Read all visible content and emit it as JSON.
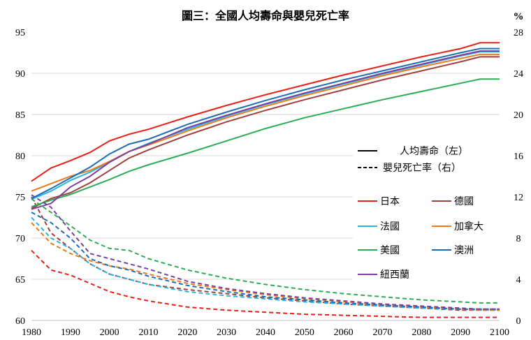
{
  "chart_data": {
    "type": "line",
    "title": "圖三：全國人均壽命與嬰兒死亡率",
    "right_unit": "%",
    "xlim": [
      1980,
      2100
    ],
    "ylim_left": [
      60,
      95
    ],
    "ylim_right": [
      0,
      28
    ],
    "x_ticks": [
      "1980",
      "1990",
      "2000",
      "2010",
      "2020",
      "2030",
      "2040",
      "2050",
      "2060",
      "2070",
      "2080",
      "2090",
      "2100"
    ],
    "y_left_ticks": [
      "60",
      "65",
      "70",
      "75",
      "80",
      "85",
      "90",
      "95"
    ],
    "y_right_ticks": [
      "0",
      "4",
      "8",
      "12",
      "16",
      "20",
      "24",
      "28"
    ],
    "grid": "horizontal",
    "legend_position": "right",
    "style_legend": [
      {
        "label": "人均壽命（左）",
        "dash": "solid"
      },
      {
        "label": "嬰兒死亡率（右）",
        "dash": "dashed"
      }
    ],
    "series": [
      {
        "name": "日本",
        "color": "#e8201a",
        "x": [
          1980,
          1985,
          1990,
          1995,
          2000,
          2005,
          2010,
          2020,
          2030,
          2040,
          2050,
          2060,
          2070,
          2080,
          2090,
          2095,
          2100
        ],
        "life": [
          76.9,
          78.5,
          79.4,
          80.4,
          81.8,
          82.6,
          83.2,
          84.7,
          86.1,
          87.4,
          88.6,
          89.8,
          90.9,
          92.0,
          93.0,
          93.7,
          93.7
        ],
        "infant": [
          6.8,
          4.9,
          4.4,
          3.6,
          2.8,
          2.3,
          1.9,
          1.3,
          1.0,
          0.8,
          0.6,
          0.5,
          0.4,
          0.3,
          0.3,
          0.3,
          0.3
        ]
      },
      {
        "name": "德國",
        "color": "#a0403c",
        "x": [
          1980,
          1985,
          1990,
          1995,
          2000,
          2005,
          2010,
          2020,
          2030,
          2040,
          2050,
          2060,
          2070,
          2080,
          2090,
          2095,
          2100
        ],
        "life": [
          73.6,
          74.8,
          75.5,
          76.7,
          78.2,
          79.7,
          80.7,
          82.5,
          84.1,
          85.5,
          86.8,
          88.0,
          89.2,
          90.3,
          91.4,
          92.0,
          92.0
        ],
        "infant": [
          12.0,
          8.5,
          7.0,
          5.5,
          4.5,
          4.0,
          3.5,
          3.0,
          2.6,
          2.2,
          1.9,
          1.6,
          1.4,
          1.2,
          1.0,
          1.0,
          1.0
        ]
      },
      {
        "name": "法國",
        "color": "#27b4e6",
        "x": [
          1980,
          1985,
          1990,
          1995,
          2000,
          2005,
          2010,
          2020,
          2030,
          2040,
          2050,
          2060,
          2070,
          2080,
          2090,
          2095,
          2100
        ],
        "life": [
          74.7,
          75.7,
          77.0,
          78.0,
          79.2,
          80.5,
          81.5,
          83.2,
          84.8,
          86.2,
          87.5,
          88.7,
          89.9,
          91.0,
          92.1,
          92.6,
          92.6
        ],
        "infant": [
          10.0,
          8.0,
          7.0,
          5.5,
          4.5,
          4.0,
          3.5,
          2.8,
          2.4,
          2.1,
          1.8,
          1.6,
          1.4,
          1.2,
          1.1,
          1.0,
          1.0
        ]
      },
      {
        "name": "加拿大",
        "color": "#ee7a1a",
        "x": [
          1980,
          1985,
          1990,
          1995,
          2000,
          2005,
          2010,
          2020,
          2030,
          2040,
          2050,
          2060,
          2070,
          2080,
          2090,
          2095,
          2100
        ],
        "life": [
          75.7,
          76.6,
          77.5,
          78.2,
          79.3,
          80.5,
          81.3,
          83.0,
          84.6,
          86.0,
          87.3,
          88.5,
          89.7,
          90.8,
          91.8,
          92.3,
          92.3
        ],
        "infant": [
          9.5,
          7.5,
          6.5,
          5.8,
          5.3,
          5.0,
          4.5,
          3.6,
          3.0,
          2.5,
          2.1,
          1.8,
          1.5,
          1.3,
          1.1,
          1.0,
          1.0
        ]
      },
      {
        "name": "美國",
        "color": "#2bad55",
        "x": [
          1980,
          1985,
          1990,
          1995,
          2000,
          2005,
          2010,
          2020,
          2030,
          2040,
          2050,
          2060,
          2070,
          2080,
          2090,
          2095,
          2100
        ],
        "life": [
          73.8,
          74.6,
          75.3,
          76.2,
          77.1,
          78.1,
          78.9,
          80.3,
          81.8,
          83.3,
          84.6,
          85.7,
          86.8,
          87.8,
          88.8,
          89.3,
          89.3
        ],
        "infant": [
          11.8,
          10.5,
          9.2,
          7.8,
          7.0,
          6.8,
          6.0,
          4.9,
          4.1,
          3.5,
          3.0,
          2.6,
          2.3,
          2.0,
          1.8,
          1.7,
          1.7
        ]
      },
      {
        "name": "澳洲",
        "color": "#1c6db5",
        "x": [
          1980,
          1985,
          1990,
          1995,
          2000,
          2005,
          2010,
          2020,
          2030,
          2040,
          2050,
          2060,
          2070,
          2080,
          2090,
          2095,
          2100
        ],
        "life": [
          74.8,
          76.0,
          77.3,
          78.6,
          80.2,
          81.4,
          82.0,
          83.8,
          85.3,
          86.7,
          88.0,
          89.2,
          90.3,
          91.4,
          92.5,
          93.0,
          93.0
        ],
        "infant": [
          10.5,
          9.5,
          8.0,
          6.0,
          5.3,
          4.9,
          4.3,
          3.4,
          2.8,
          2.3,
          2.0,
          1.7,
          1.5,
          1.3,
          1.1,
          1.1,
          1.1
        ]
      },
      {
        "name": "紐西蘭",
        "color": "#7b3fa0",
        "x": [
          1980,
          1985,
          1990,
          1995,
          2000,
          2005,
          2010,
          2020,
          2030,
          2040,
          2050,
          2060,
          2070,
          2080,
          2090,
          2095,
          2100
        ],
        "life": [
          73.5,
          74.2,
          76.2,
          77.5,
          79.2,
          80.5,
          81.4,
          83.4,
          84.9,
          86.3,
          87.6,
          88.8,
          90.0,
          91.1,
          92.2,
          92.7,
          92.7
        ],
        "infant": [
          12.2,
          11.0,
          8.7,
          6.5,
          6.0,
          5.5,
          5.0,
          3.8,
          3.1,
          2.6,
          2.2,
          1.9,
          1.6,
          1.4,
          1.2,
          1.1,
          1.1
        ]
      }
    ]
  }
}
